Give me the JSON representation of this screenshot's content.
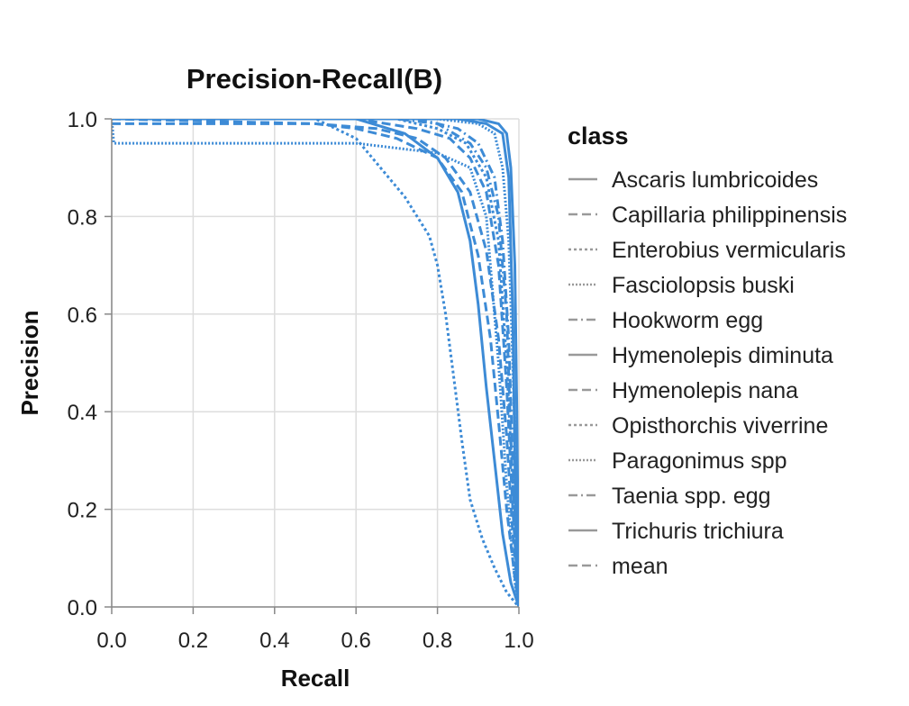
{
  "chart_data": {
    "type": "line",
    "title": "Precision-Recall(B)",
    "xlabel": "Recall",
    "ylabel": "Precision",
    "xlim": [
      0,
      1
    ],
    "ylim": [
      0,
      1
    ],
    "x_ticks": [
      "0.0",
      "0.2",
      "0.4",
      "0.6",
      "0.8",
      "1.0"
    ],
    "y_ticks": [
      "0.0",
      "0.2",
      "0.4",
      "0.6",
      "0.8",
      "1.0"
    ],
    "grid": true,
    "legend_title": "class",
    "legend_position": "right",
    "line_color": "#3d8bd6",
    "series": [
      {
        "name": "Ascaris lumbricoides",
        "dash": "solid",
        "points": [
          [
            0,
            1
          ],
          [
            0.6,
            1
          ],
          [
            0.72,
            0.97
          ],
          [
            0.8,
            0.92
          ],
          [
            0.85,
            0.85
          ],
          [
            0.88,
            0.75
          ],
          [
            0.9,
            0.62
          ],
          [
            0.92,
            0.45
          ],
          [
            0.94,
            0.3
          ],
          [
            0.96,
            0.15
          ],
          [
            0.98,
            0.05
          ],
          [
            1,
            0
          ]
        ]
      },
      {
        "name": "Capillaria philippinensis",
        "dash": "dashed",
        "points": [
          [
            0,
            0.99
          ],
          [
            0.5,
            0.99
          ],
          [
            0.6,
            0.98
          ],
          [
            0.7,
            0.96
          ],
          [
            0.8,
            0.92
          ],
          [
            0.86,
            0.85
          ],
          [
            0.9,
            0.72
          ],
          [
            0.93,
            0.55
          ],
          [
            0.95,
            0.38
          ],
          [
            0.97,
            0.2
          ],
          [
            0.99,
            0.06
          ],
          [
            1,
            0
          ]
        ]
      },
      {
        "name": "Enterobius vermicularis",
        "dash": "dotted",
        "points": [
          [
            0,
            1
          ],
          [
            0.5,
            1
          ],
          [
            0.6,
            0.96
          ],
          [
            0.66,
            0.9
          ],
          [
            0.72,
            0.84
          ],
          [
            0.78,
            0.76
          ],
          [
            0.8,
            0.7
          ],
          [
            0.82,
            0.6
          ],
          [
            0.84,
            0.47
          ],
          [
            0.86,
            0.34
          ],
          [
            0.88,
            0.22
          ],
          [
            0.91,
            0.14
          ],
          [
            0.94,
            0.08
          ],
          [
            0.97,
            0.03
          ],
          [
            1,
            0
          ]
        ]
      },
      {
        "name": "Fasciolopsis buski",
        "dash": "densedot",
        "points": [
          [
            0,
            1
          ],
          [
            0.005,
            0.95
          ],
          [
            0.6,
            0.95
          ],
          [
            0.7,
            0.94
          ],
          [
            0.8,
            0.93
          ],
          [
            0.88,
            0.9
          ],
          [
            0.92,
            0.8
          ],
          [
            0.95,
            0.5
          ],
          [
            0.97,
            0.25
          ],
          [
            0.99,
            0.05
          ],
          [
            1,
            0
          ]
        ]
      },
      {
        "name": "Hookworm egg",
        "dash": "dashdot",
        "points": [
          [
            0,
            1
          ],
          [
            0.7,
            1
          ],
          [
            0.8,
            0.99
          ],
          [
            0.88,
            0.95
          ],
          [
            0.92,
            0.9
          ],
          [
            0.95,
            0.8
          ],
          [
            0.97,
            0.6
          ],
          [
            0.98,
            0.35
          ],
          [
            0.99,
            0.15
          ],
          [
            1,
            0
          ]
        ]
      },
      {
        "name": "Hymenolepis diminuta",
        "dash": "solid",
        "points": [
          [
            0,
            1
          ],
          [
            0.85,
            1
          ],
          [
            0.92,
            0.99
          ],
          [
            0.96,
            0.97
          ],
          [
            0.975,
            0.88
          ],
          [
            0.985,
            0.6
          ],
          [
            0.99,
            0.3
          ],
          [
            0.995,
            0.1
          ],
          [
            1,
            0
          ]
        ]
      },
      {
        "name": "Hymenolepis nana",
        "dash": "dashed",
        "points": [
          [
            0,
            1
          ],
          [
            0.6,
            1
          ],
          [
            0.75,
            0.98
          ],
          [
            0.83,
            0.96
          ],
          [
            0.88,
            0.92
          ],
          [
            0.92,
            0.85
          ],
          [
            0.95,
            0.7
          ],
          [
            0.97,
            0.45
          ],
          [
            0.985,
            0.2
          ],
          [
            1,
            0
          ]
        ]
      },
      {
        "name": "Opisthorchis viverrine",
        "dash": "dotted",
        "points": [
          [
            0,
            1
          ],
          [
            0.7,
            1
          ],
          [
            0.8,
            0.98
          ],
          [
            0.87,
            0.95
          ],
          [
            0.92,
            0.88
          ],
          [
            0.95,
            0.75
          ],
          [
            0.97,
            0.5
          ],
          [
            0.985,
            0.25
          ],
          [
            1,
            0
          ]
        ]
      },
      {
        "name": "Paragonimus spp",
        "dash": "densedot",
        "points": [
          [
            0,
            1
          ],
          [
            0.8,
            1
          ],
          [
            0.9,
            0.99
          ],
          [
            0.94,
            0.97
          ],
          [
            0.96,
            0.9
          ],
          [
            0.975,
            0.75
          ],
          [
            0.985,
            0.5
          ],
          [
            0.995,
            0.2
          ],
          [
            1,
            0
          ]
        ]
      },
      {
        "name": "Taenia spp. egg",
        "dash": "dashdot",
        "points": [
          [
            0,
            1
          ],
          [
            0.75,
            1
          ],
          [
            0.85,
            0.98
          ],
          [
            0.9,
            0.95
          ],
          [
            0.94,
            0.88
          ],
          [
            0.96,
            0.75
          ],
          [
            0.975,
            0.55
          ],
          [
            0.985,
            0.3
          ],
          [
            0.995,
            0.1
          ],
          [
            1,
            0
          ]
        ]
      },
      {
        "name": "Trichuris trichiura",
        "dash": "solid",
        "points": [
          [
            0,
            1
          ],
          [
            0.9,
            1
          ],
          [
            0.95,
            0.99
          ],
          [
            0.97,
            0.97
          ],
          [
            0.98,
            0.9
          ],
          [
            0.99,
            0.7
          ],
          [
            0.995,
            0.4
          ],
          [
            1,
            0
          ]
        ]
      },
      {
        "name": "mean",
        "dash": "dashed",
        "points": [
          [
            0,
            1
          ],
          [
            0.5,
            0.99
          ],
          [
            0.65,
            0.98
          ],
          [
            0.75,
            0.96
          ],
          [
            0.82,
            0.92
          ],
          [
            0.88,
            0.85
          ],
          [
            0.92,
            0.73
          ],
          [
            0.95,
            0.55
          ],
          [
            0.97,
            0.35
          ],
          [
            0.985,
            0.15
          ],
          [
            1,
            0
          ]
        ]
      }
    ]
  }
}
